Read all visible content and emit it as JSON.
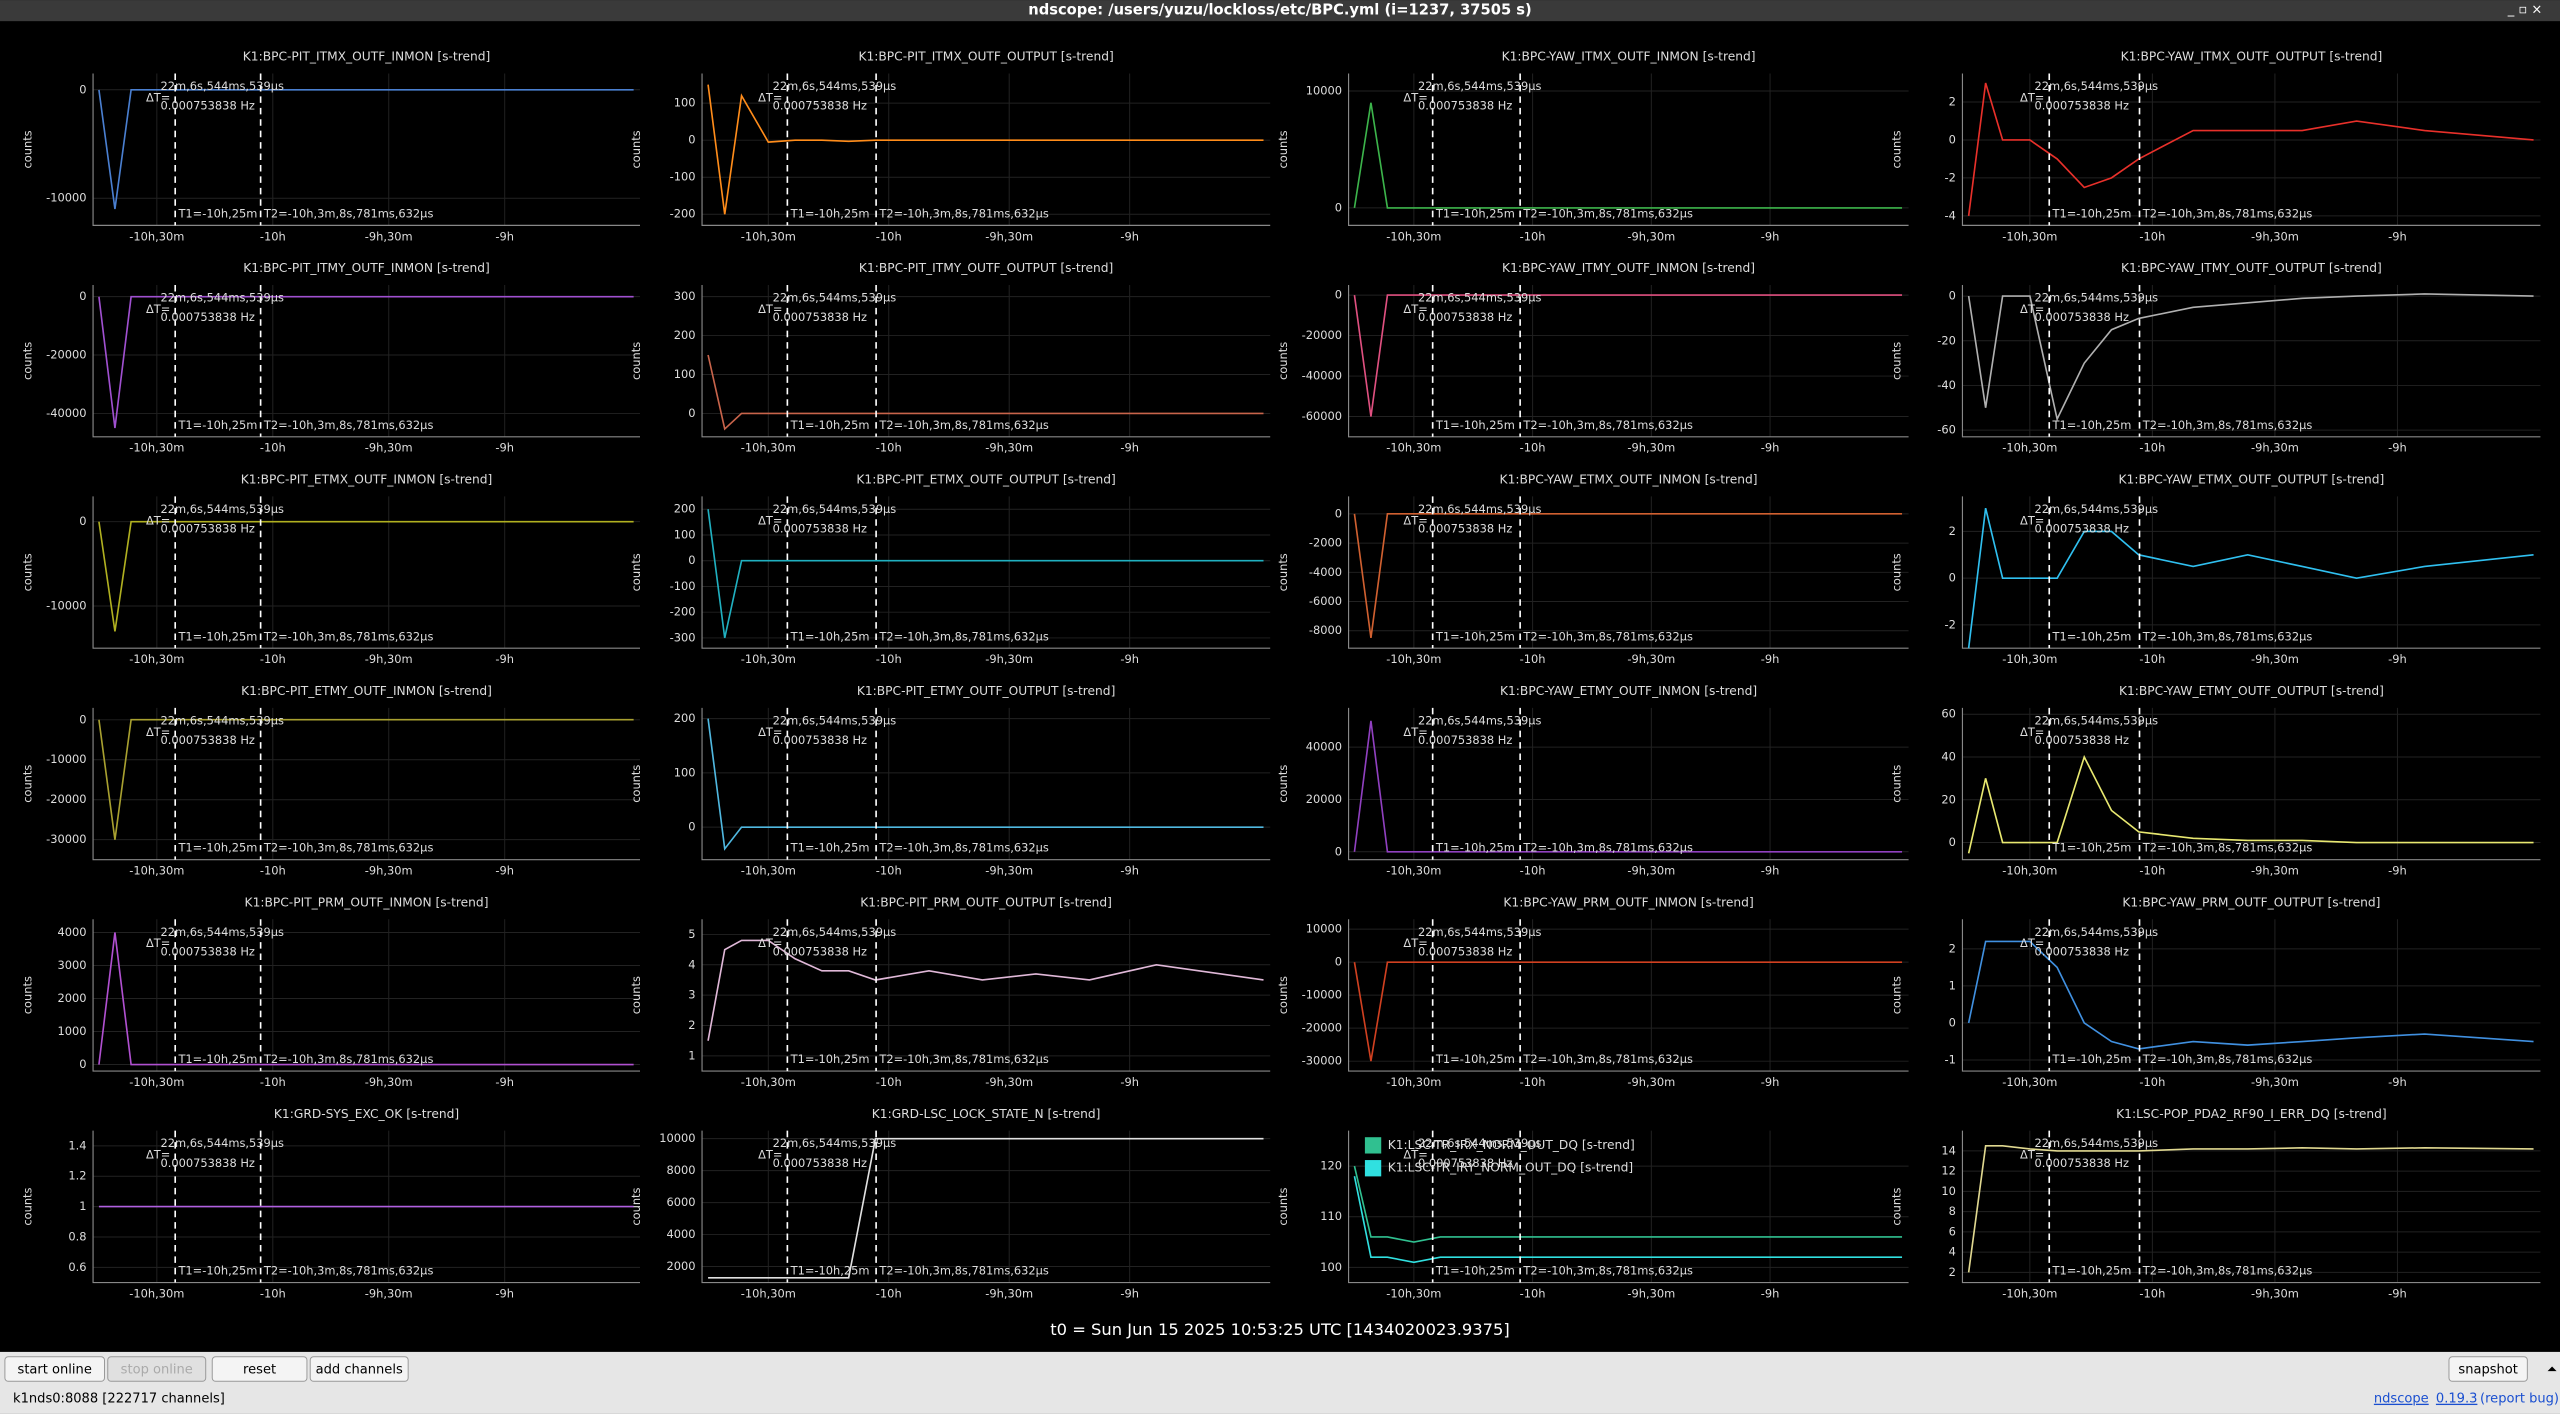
{
  "window": {
    "title": "ndscope: /users/yuzu/lockloss/etc/BPC.yml (i=1237, 37505 s)"
  },
  "xlim": [
    -38790,
    -30300
  ],
  "xticks": [
    {
      "value": -37800,
      "label": "-10h,30m"
    },
    {
      "value": -36000,
      "label": "-10h"
    },
    {
      "value": -34200,
      "label": "-9h,30m"
    },
    {
      "value": -32400,
      "label": "-9h"
    }
  ],
  "time_x": [
    -38700,
    -38450,
    -38200,
    -37800,
    -37400,
    -37000,
    -36600,
    -36200,
    -35400,
    -34600,
    -33800,
    -33000,
    -32000,
    -30400
  ],
  "cursors": {
    "t1": -37515,
    "t2": -36189,
    "dt_label": "ΔT=",
    "dt": "22m,6s,544ms,539µs",
    "freq": "0.000753838 Hz",
    "t1_label": "T1=-10h,25m",
    "t2_label": "T2=-10h,3m,8s,781ms,632µs"
  },
  "ylabel": "counts",
  "plots": [
    {
      "title": "K1:BPC-PIT_ITMX_OUTF_INMON [s-trend]",
      "ylim": [
        -12500,
        1500
      ],
      "yticks": [
        0,
        -10000
      ],
      "series": [
        {
          "color": "#4a7fd0",
          "values": [
            0,
            -11000,
            0,
            0,
            0,
            0,
            0,
            0,
            0,
            0,
            0,
            0,
            0,
            0
          ]
        }
      ]
    },
    {
      "title": "K1:BPC-PIT_ITMX_OUTF_OUTPUT [s-trend]",
      "ylim": [
        -230,
        180
      ],
      "yticks": [
        100,
        0,
        -100,
        -200
      ],
      "series": [
        {
          "color": "#ff8c1a",
          "values": [
            150,
            -200,
            120,
            -5,
            0,
            0,
            -3,
            0,
            0,
            0,
            0,
            0,
            0,
            0
          ]
        }
      ]
    },
    {
      "title": "K1:BPC-YAW_ITMX_OUTF_INMON [s-trend]",
      "ylim": [
        -1500,
        11500
      ],
      "yticks": [
        10000,
        0
      ],
      "series": [
        {
          "color": "#3cb44b",
          "values": [
            0,
            9000,
            0,
            0,
            0,
            0,
            0,
            0,
            0,
            0,
            0,
            0,
            0,
            0
          ]
        }
      ]
    },
    {
      "title": "K1:BPC-YAW_ITMX_OUTF_OUTPUT [s-trend]",
      "ylim": [
        -4.5,
        3.5
      ],
      "yticks": [
        2,
        0,
        -2,
        -4
      ],
      "series": [
        {
          "color": "#e8302a",
          "values": [
            -4,
            3,
            0,
            0,
            -1,
            -2.5,
            -2,
            -1,
            0.5,
            0.5,
            0.5,
            1,
            0.5,
            0
          ]
        }
      ]
    },
    {
      "title": "K1:BPC-PIT_ITMY_OUTF_INMON [s-trend]",
      "ylim": [
        -48000,
        4000
      ],
      "yticks": [
        0,
        -20000,
        -40000
      ],
      "series": [
        {
          "color": "#a050d0",
          "values": [
            0,
            -45000,
            0,
            0,
            0,
            0,
            0,
            0,
            0,
            0,
            0,
            0,
            0,
            0
          ]
        }
      ]
    },
    {
      "title": "K1:BPC-PIT_ITMY_OUTF_OUTPUT [s-trend]",
      "ylim": [
        -60,
        330
      ],
      "yticks": [
        300,
        200,
        100,
        0
      ],
      "series": [
        {
          "color": "#c8644b",
          "values": [
            150,
            -40,
            0,
            0,
            0,
            0,
            0,
            0,
            0,
            0,
            0,
            0,
            0,
            0
          ]
        }
      ]
    },
    {
      "title": "K1:BPC-YAW_ITMY_OUTF_INMON [s-trend]",
      "ylim": [
        -70000,
        5000
      ],
      "yticks": [
        0,
        -20000,
        -40000,
        -60000
      ],
      "series": [
        {
          "color": "#e05080",
          "values": [
            0,
            -60000,
            0,
            0,
            0,
            0,
            0,
            0,
            0,
            0,
            0,
            0,
            0,
            0
          ]
        }
      ]
    },
    {
      "title": "K1:BPC-YAW_ITMY_OUTF_OUTPUT [s-trend]",
      "ylim": [
        -63,
        5
      ],
      "yticks": [
        0,
        -20,
        -40,
        -60
      ],
      "series": [
        {
          "color": "#b0b0b0",
          "values": [
            0,
            -50,
            0,
            0,
            -55,
            -30,
            -15,
            -10,
            -5,
            -3,
            -1,
            0,
            1,
            0
          ]
        }
      ]
    },
    {
      "title": "K1:BPC-PIT_ETMX_OUTF_INMON [s-trend]",
      "ylim": [
        -15000,
        3000
      ],
      "yticks": [
        0,
        -10000
      ],
      "series": [
        {
          "color": "#b0b020",
          "values": [
            0,
            -13000,
            0,
            0,
            0,
            0,
            0,
            0,
            0,
            0,
            0,
            0,
            0,
            0
          ]
        }
      ]
    },
    {
      "title": "K1:BPC-PIT_ETMX_OUTF_OUTPUT [s-trend]",
      "ylim": [
        -340,
        250
      ],
      "yticks": [
        200,
        100,
        0,
        -100,
        -200,
        -300
      ],
      "series": [
        {
          "color": "#20b0c0",
          "values": [
            200,
            -300,
            0,
            0,
            0,
            0,
            0,
            0,
            0,
            0,
            0,
            0,
            0,
            0
          ]
        }
      ]
    },
    {
      "title": "K1:BPC-YAW_ETMX_OUTF_INMON [s-trend]",
      "ylim": [
        -9200,
        1200
      ],
      "yticks": [
        0,
        -2000,
        -4000,
        -6000,
        -8000
      ],
      "series": [
        {
          "color": "#d06030",
          "values": [
            0,
            -8500,
            0,
            0,
            0,
            0,
            0,
            0,
            0,
            0,
            0,
            0,
            0,
            0
          ]
        }
      ]
    },
    {
      "title": "K1:BPC-YAW_ETMX_OUTF_OUTPUT [s-trend]",
      "ylim": [
        -3,
        3.5
      ],
      "yticks": [
        2,
        0,
        -2
      ],
      "series": [
        {
          "color": "#30c0f0",
          "values": [
            -3,
            3,
            0,
            0,
            0,
            2,
            2,
            1,
            0.5,
            1,
            0.5,
            0,
            0.5,
            1
          ]
        }
      ]
    },
    {
      "title": "K1:BPC-PIT_ETMY_OUTF_INMON [s-trend]",
      "ylim": [
        -35000,
        3000
      ],
      "yticks": [
        0,
        -10000,
        -20000,
        -30000
      ],
      "series": [
        {
          "color": "#a8a030",
          "values": [
            0,
            -30000,
            0,
            0,
            0,
            0,
            0,
            0,
            0,
            0,
            0,
            0,
            0,
            0
          ]
        }
      ]
    },
    {
      "title": "K1:BPC-PIT_ETMY_OUTF_OUTPUT [s-trend]",
      "ylim": [
        -60,
        220
      ],
      "yticks": [
        200,
        100,
        0
      ],
      "series": [
        {
          "color": "#50b8e0",
          "values": [
            200,
            -40,
            0,
            0,
            0,
            0,
            0,
            0,
            0,
            0,
            0,
            0,
            0,
            0
          ]
        }
      ]
    },
    {
      "title": "K1:BPC-YAW_ETMY_OUTF_INMON [s-trend]",
      "ylim": [
        -3000,
        55000
      ],
      "yticks": [
        40000,
        20000,
        0
      ],
      "series": [
        {
          "color": "#9040c0",
          "values": [
            0,
            50000,
            0,
            0,
            0,
            0,
            0,
            0,
            0,
            0,
            0,
            0,
            0,
            0
          ]
        }
      ]
    },
    {
      "title": "K1:BPC-YAW_ETMY_OUTF_OUTPUT [s-trend]",
      "ylim": [
        -8,
        63
      ],
      "yticks": [
        60,
        40,
        20,
        0
      ],
      "series": [
        {
          "color": "#e8e870",
          "values": [
            -5,
            30,
            0,
            0,
            0,
            40,
            15,
            5,
            2,
            1,
            1,
            0,
            0,
            0
          ]
        }
      ]
    },
    {
      "title": "K1:BPC-PIT_PRM_OUTF_INMON [s-trend]",
      "ylim": [
        -200,
        4400
      ],
      "yticks": [
        4000,
        3000,
        2000,
        1000,
        0
      ],
      "series": [
        {
          "color": "#b050d0",
          "values": [
            0,
            4000,
            0,
            0,
            0,
            0,
            0,
            0,
            0,
            0,
            0,
            0,
            0,
            0
          ]
        }
      ]
    },
    {
      "title": "K1:BPC-PIT_PRM_OUTF_OUTPUT [s-trend]",
      "ylim": [
        0.5,
        5.5
      ],
      "yticks": [
        5,
        4,
        3,
        2,
        1
      ],
      "series": [
        {
          "color": "#e0b8d8",
          "values": [
            1.5,
            4.5,
            4.8,
            4.8,
            4.2,
            3.8,
            3.8,
            3.5,
            3.8,
            3.5,
            3.7,
            3.5,
            4,
            3.5
          ]
        }
      ]
    },
    {
      "title": "K1:BPC-YAW_PRM_OUTF_INMON [s-trend]",
      "ylim": [
        -33000,
        13000
      ],
      "yticks": [
        10000,
        0,
        -10000,
        -20000,
        -30000
      ],
      "series": [
        {
          "color": "#d04020",
          "values": [
            0,
            -30000,
            0,
            0,
            0,
            0,
            0,
            0,
            0,
            0,
            0,
            0,
            0,
            0
          ]
        }
      ]
    },
    {
      "title": "K1:BPC-YAW_PRM_OUTF_OUTPUT [s-trend]",
      "ylim": [
        -1.3,
        2.8
      ],
      "yticks": [
        2,
        1,
        0,
        -1
      ],
      "series": [
        {
          "color": "#4090e0",
          "values": [
            0,
            2.2,
            2.2,
            2.2,
            1.5,
            0,
            -0.5,
            -0.7,
            -0.5,
            -0.6,
            -0.5,
            -0.4,
            -0.3,
            -0.5
          ]
        }
      ]
    },
    {
      "title": "K1:GRD-SYS_EXC_OK [s-trend]",
      "ylim": [
        0.5,
        1.5
      ],
      "yticks": [
        1.4,
        1.2,
        1,
        0.8,
        0.6
      ],
      "series": [
        {
          "color": "#b060e0",
          "values": [
            1,
            1,
            1,
            1,
            1,
            1,
            1,
            1,
            1,
            1,
            1,
            1,
            1,
            1
          ]
        }
      ]
    },
    {
      "title": "K1:GRD-LSC_LOCK_STATE_N [s-trend]",
      "ylim": [
        1000,
        10500
      ],
      "yticks": [
        10000,
        8000,
        6000,
        4000,
        2000
      ],
      "series": [
        {
          "color": "#e0e0e0",
          "values": [
            1300,
            1300,
            1300,
            1300,
            1300,
            1300,
            1300,
            10000,
            10000,
            10000,
            10000,
            10000,
            10000,
            10000
          ]
        }
      ]
    },
    {
      "ylim": [
        97,
        127
      ],
      "yticks": [
        120,
        110,
        100
      ],
      "series": [
        {
          "name": "K1:LSC-TR_IRX_NORM_OUT_DQ [s-trend]",
          "color": "#30c090",
          "values": [
            120,
            106,
            106,
            105,
            106,
            106,
            106,
            106,
            106,
            106,
            106,
            106,
            106,
            106
          ]
        },
        {
          "name": "K1:LSC-TR_IRY_NORM_OUT_DQ [s-trend]",
          "color": "#30e0e0",
          "values": [
            118,
            102,
            102,
            101,
            102,
            102,
            102,
            102,
            102,
            102,
            102,
            102,
            102,
            102
          ]
        }
      ]
    },
    {
      "title": "K1:LSC-POP_PDA2_RF90_I_ERR_DQ [s-trend]",
      "ylim": [
        1,
        16
      ],
      "yticks": [
        14,
        12,
        10,
        8,
        6,
        4,
        2
      ],
      "series": [
        {
          "color": "#e0d890",
          "values": [
            2,
            14.5,
            14.5,
            14.2,
            14,
            14,
            14,
            14,
            14.2,
            14.2,
            14.3,
            14.2,
            14.3,
            14.2
          ]
        }
      ]
    }
  ],
  "footer": {
    "t0": "t0 = Sun Jun 15 2025 10:53:25 UTC [1434020023.9375]"
  },
  "buttons": [
    "start online",
    "stop online",
    "reset",
    "add channels",
    "snapshot"
  ],
  "status": {
    "server": "k1nds0:8088 [222717 channels]",
    "app": "ndscope",
    "version": "0.19.3",
    "report": "(report bug)"
  }
}
